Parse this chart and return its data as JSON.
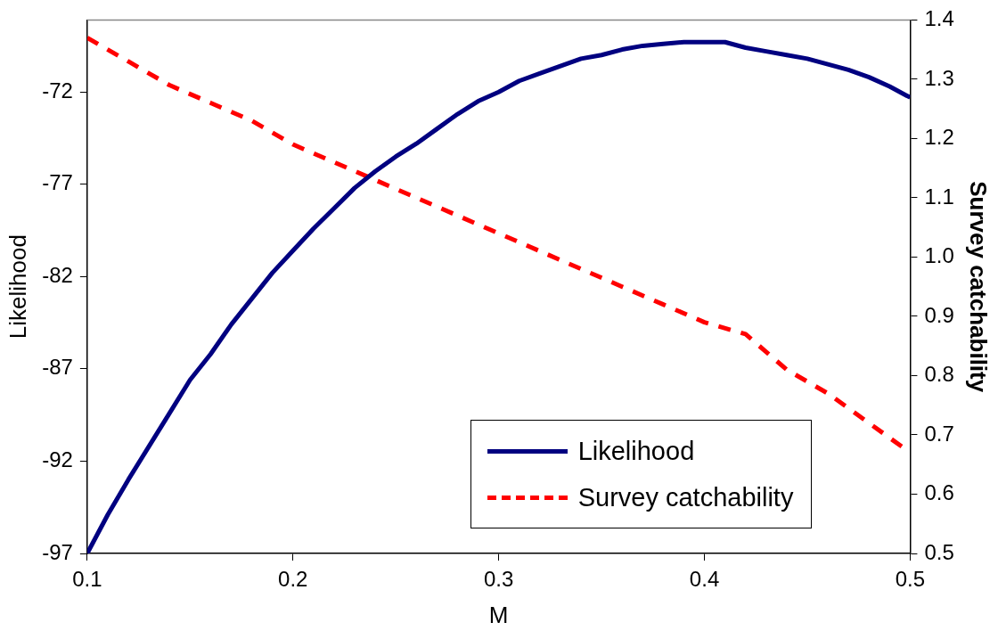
{
  "chart_data": {
    "type": "line",
    "xlabel": "M",
    "ylabel": "Likelihood",
    "y2label": "Survey catchability",
    "xlim": [
      0.1,
      0.5
    ],
    "xticks": [
      0.1,
      0.2,
      0.3,
      0.4,
      0.5
    ],
    "ylim": [
      -97,
      -68.1
    ],
    "yticks": [
      -97,
      -92,
      -87,
      -82,
      -77,
      -72
    ],
    "y2lim": [
      0.5,
      1.4
    ],
    "y2ticks": [
      0.5,
      0.6,
      0.7,
      0.8,
      0.9,
      {
        "value": 1,
        "label": "1.0"
      },
      1.1,
      1.2,
      1.3,
      1.4
    ],
    "grid": false,
    "legend": "bottom right",
    "marker": "none",
    "series": [
      {
        "name": "Likelihood",
        "color": "#000080",
        "line_style": "solid",
        "x": [
          0.1,
          0.11,
          0.12,
          0.13,
          0.14,
          0.15,
          0.16,
          0.17,
          0.18,
          0.19,
          0.2,
          0.21,
          0.22,
          0.23,
          0.24,
          0.25,
          0.26,
          0.27,
          0.28,
          0.29,
          0.3,
          0.31,
          0.32,
          0.33,
          0.34,
          0.35,
          0.36,
          0.37,
          0.38,
          0.39,
          0.4,
          0.41,
          0.42,
          0.43,
          0.44,
          0.45,
          0.46,
          0.47,
          0.48,
          0.49,
          0.5
        ],
        "values": [
          -97,
          -94.9,
          -93,
          -91.2,
          -89.4,
          -87.6,
          -86.2,
          -84.6,
          -83.2,
          -81.8,
          -80.6,
          -79.4,
          -78.3,
          -77.2,
          -76.3,
          -75.5,
          -74.8,
          -74,
          -73.2,
          -72.5,
          -72,
          -71.4,
          -71,
          -70.6,
          -70.2,
          -70,
          -69.7,
          -69.5,
          -69.4,
          -69.3,
          -69.3,
          -69.3,
          -69.6,
          -69.8,
          -70,
          -70.2,
          -70.5,
          -70.8,
          -71.2,
          -71.7,
          -72.3
        ]
      },
      {
        "name": "Survey catchability",
        "color": "#ff0000",
        "line_style": "dashed",
        "axis": "y2",
        "x": [
          0.1,
          0.12,
          0.14,
          0.16,
          0.18,
          0.2,
          0.22,
          0.24,
          0.26,
          0.28,
          0.3,
          0.32,
          0.34,
          0.36,
          0.38,
          0.4,
          0.42,
          0.43,
          0.44,
          0.46,
          0.48,
          0.5
        ],
        "values": [
          1.37,
          1.33,
          1.29,
          1.26,
          1.23,
          1.19,
          1.16,
          1.13,
          1.1,
          1.07,
          1.04,
          1.01,
          0.98,
          0.95,
          0.92,
          0.89,
          0.87,
          0.84,
          0.81,
          0.77,
          0.72,
          0.67
        ]
      }
    ]
  }
}
